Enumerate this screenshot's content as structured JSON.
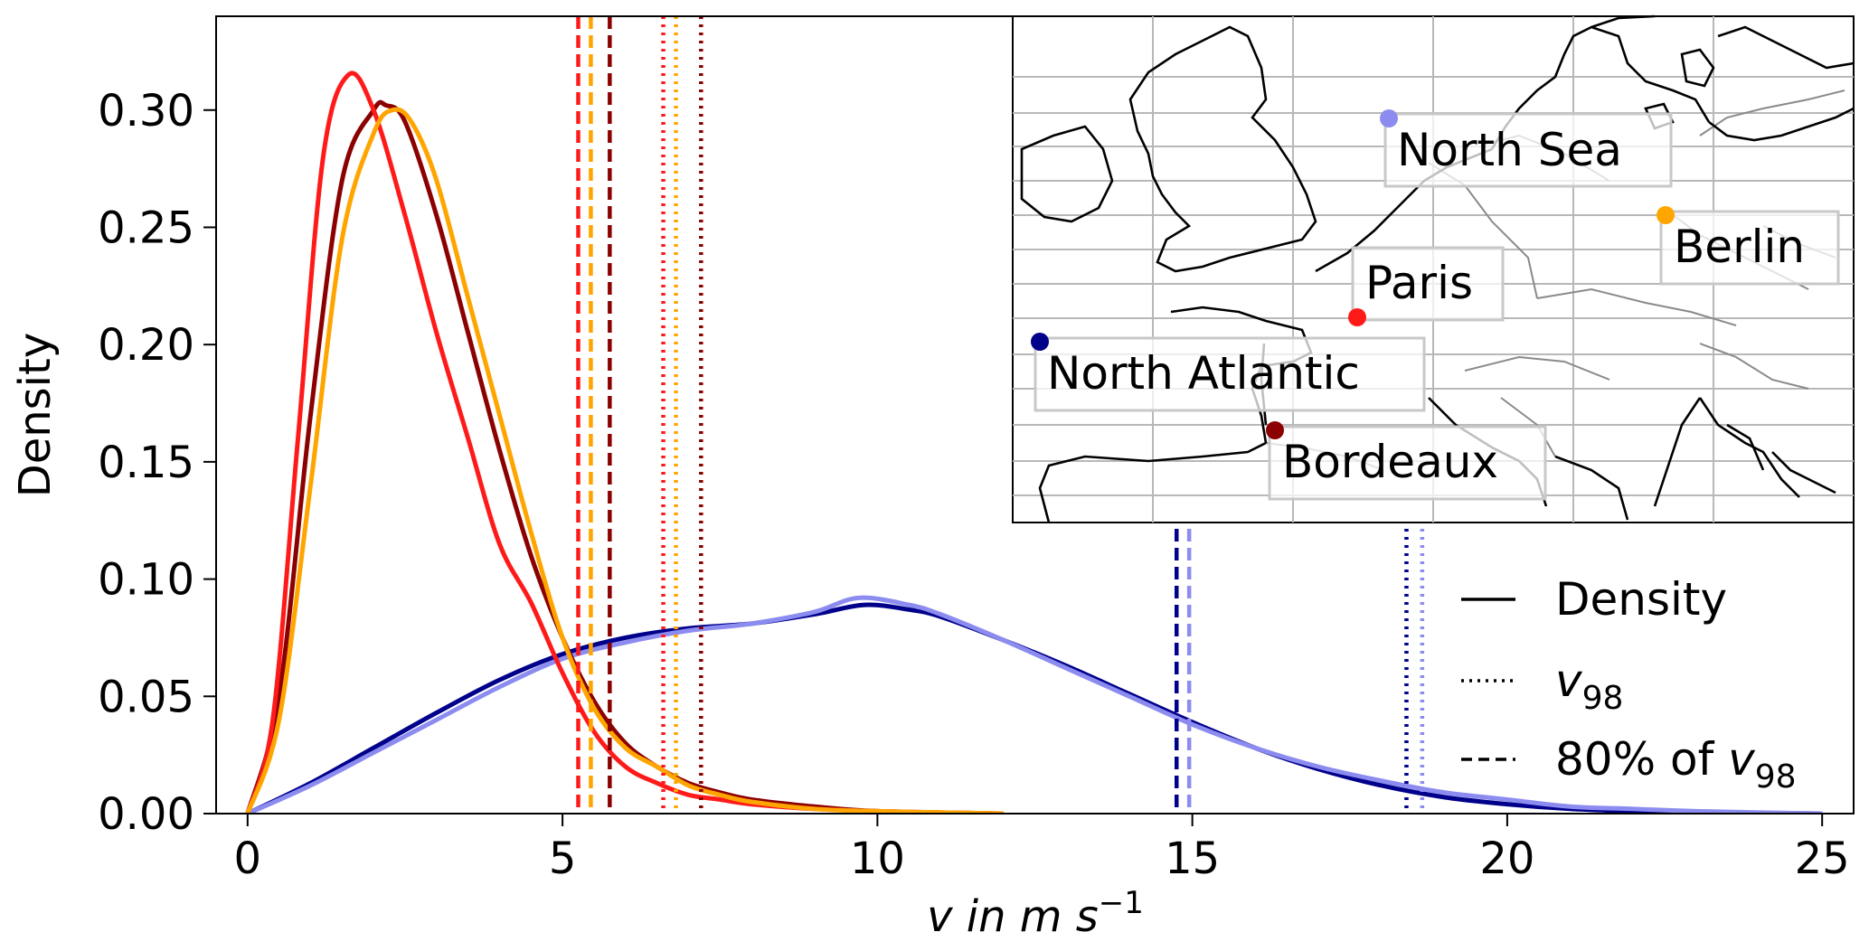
{
  "chart_data": {
    "type": "line",
    "xlabel": "v in m s",
    "xlabel_sup": "−1",
    "ylabel": "Density",
    "xlim": [
      -0.5,
      25.5
    ],
    "ylim": [
      0,
      0.34
    ],
    "xticks": [
      0,
      5,
      10,
      15,
      20,
      25
    ],
    "xtick_labels": [
      "0",
      "5",
      "10",
      "15",
      "20",
      "25"
    ],
    "yticks": [
      0,
      0.05,
      0.1,
      0.15,
      0.2,
      0.25,
      0.3
    ],
    "ytick_labels": [
      "0.00",
      "0.05",
      "0.10",
      "0.15",
      "0.20",
      "0.25",
      "0.30"
    ],
    "grid": false,
    "legend_position": "right",
    "legend": [
      {
        "label": "Density",
        "style": "solid"
      },
      {
        "label": "v",
        "sub": "98",
        "style": "dotted"
      },
      {
        "label": "80% of v",
        "sub": "98",
        "style": "dashed"
      }
    ],
    "series": [
      {
        "key": "paris",
        "color": "#ff1a1a",
        "x": [
          0,
          0.4,
          0.8,
          1.2,
          1.6,
          2.0,
          2.5,
          3.0,
          3.5,
          4.0,
          4.5,
          5.0,
          5.5,
          6.0,
          6.5,
          7.0,
          7.5,
          8.0,
          9.0,
          10.0,
          12.0
        ],
        "y": [
          0.0,
          0.04,
          0.16,
          0.28,
          0.315,
          0.3,
          0.255,
          0.205,
          0.16,
          0.115,
          0.09,
          0.06,
          0.035,
          0.02,
          0.013,
          0.008,
          0.006,
          0.004,
          0.002,
          0.001,
          0.0
        ]
      },
      {
        "key": "bordeaux",
        "color": "#8b0000",
        "x": [
          0,
          0.5,
          1.0,
          1.5,
          2.0,
          2.2,
          2.5,
          3.0,
          3.5,
          4.0,
          4.5,
          5.0,
          5.5,
          6.0,
          6.5,
          7.0,
          7.5,
          8.0,
          9.0,
          10.0,
          12.0
        ],
        "y": [
          0.0,
          0.05,
          0.17,
          0.27,
          0.3,
          0.302,
          0.295,
          0.255,
          0.205,
          0.155,
          0.11,
          0.075,
          0.048,
          0.03,
          0.02,
          0.013,
          0.009,
          0.006,
          0.003,
          0.001,
          0.0
        ]
      },
      {
        "key": "berlin",
        "color": "#ffa500",
        "x": [
          0,
          0.5,
          1.0,
          1.5,
          2.0,
          2.3,
          2.6,
          3.0,
          3.5,
          4.0,
          4.5,
          5.0,
          5.5,
          6.0,
          6.5,
          7.0,
          7.5,
          8.0,
          9.0,
          10.0,
          12.0
        ],
        "y": [
          0.0,
          0.04,
          0.14,
          0.245,
          0.29,
          0.3,
          0.295,
          0.27,
          0.22,
          0.17,
          0.12,
          0.075,
          0.045,
          0.028,
          0.02,
          0.012,
          0.008,
          0.005,
          0.002,
          0.001,
          0.0
        ]
      },
      {
        "key": "north-atlantic",
        "color": "#00008b",
        "x": [
          0,
          1,
          2,
          3,
          4,
          5,
          6,
          7,
          8,
          9,
          9.8,
          10.5,
          11,
          12,
          13,
          14,
          15,
          16,
          17,
          18,
          19,
          20,
          21,
          22,
          23,
          25
        ],
        "y": [
          0.0,
          0.013,
          0.028,
          0.043,
          0.057,
          0.068,
          0.075,
          0.079,
          0.081,
          0.085,
          0.089,
          0.087,
          0.084,
          0.074,
          0.063,
          0.051,
          0.039,
          0.028,
          0.019,
          0.012,
          0.007,
          0.004,
          0.002,
          0.001,
          0.0005,
          0.0
        ]
      },
      {
        "key": "north-sea",
        "color": "#8c8cf0",
        "x": [
          0,
          1,
          2,
          3,
          4,
          5,
          6,
          7,
          8,
          9,
          9.7,
          10.5,
          11,
          12,
          13,
          14,
          15,
          16,
          17,
          18,
          19,
          20,
          21,
          22,
          23,
          25
        ],
        "y": [
          0.0,
          0.012,
          0.026,
          0.04,
          0.054,
          0.066,
          0.073,
          0.078,
          0.081,
          0.086,
          0.092,
          0.089,
          0.085,
          0.074,
          0.062,
          0.05,
          0.038,
          0.028,
          0.02,
          0.014,
          0.009,
          0.006,
          0.003,
          0.002,
          0.001,
          0.0
        ]
      }
    ],
    "thresholds": [
      {
        "color": "#ff1a1a",
        "v98": 6.6,
        "v80": 5.25
      },
      {
        "color": "#ffa500",
        "v98": 6.8,
        "v80": 5.45
      },
      {
        "color": "#8b0000",
        "v98": 7.2,
        "v80": 5.75
      },
      {
        "color": "#00008b",
        "v98": 18.4,
        "v80": 14.75
      },
      {
        "color": "#8c8cf0",
        "v98": 18.65,
        "v80": 14.95
      }
    ],
    "inset_map": {
      "locations": [
        {
          "name": "North Sea",
          "color": "#8c8cf0"
        },
        {
          "name": "Berlin",
          "color": "#ffa500"
        },
        {
          "name": "Paris",
          "color": "#ff1a1a"
        },
        {
          "name": "North Atlantic",
          "color": "#00008b"
        },
        {
          "name": "Bordeaux",
          "color": "#8b0000"
        }
      ]
    }
  }
}
